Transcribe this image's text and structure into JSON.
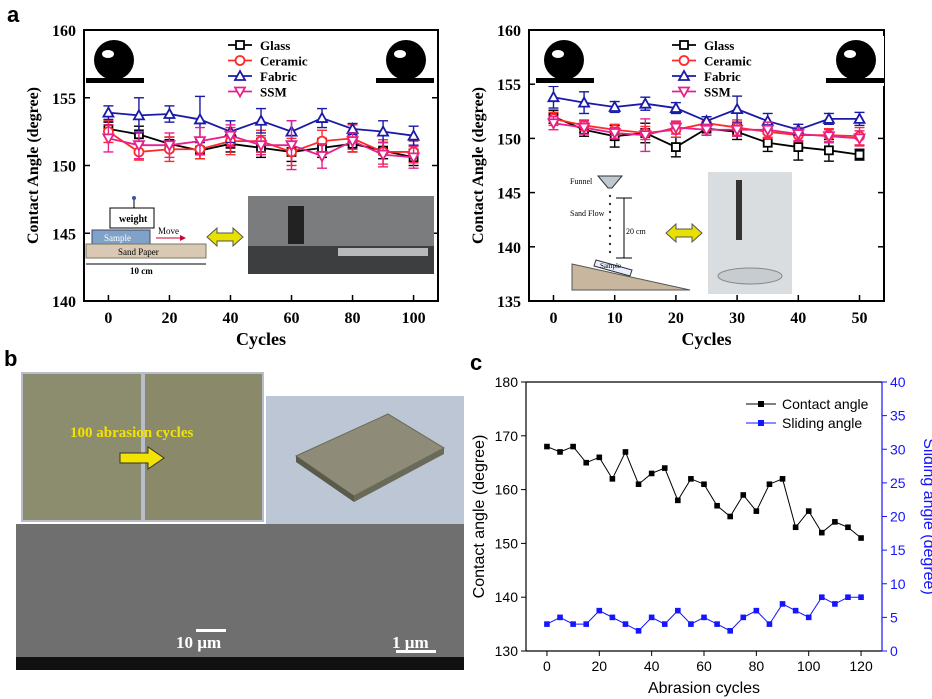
{
  "panel_labels": {
    "a": "a",
    "b": "b",
    "c": "c"
  },
  "panel_a_left": {
    "ylabel": "Contact Angle (degree)",
    "xlabel": "Cycles",
    "legend": [
      "Glass",
      "Ceramic",
      "Fabric",
      "SSM"
    ],
    "inset": {
      "weight": "weight",
      "sample": "Sample",
      "move": "Move",
      "sandpaper": "Sand Paper",
      "length": "10 cm"
    }
  },
  "panel_a_right": {
    "ylabel": "Contact Angle (degree)",
    "xlabel": "Cycles",
    "legend": [
      "Glass",
      "Ceramic",
      "Fabric",
      "SSM"
    ],
    "inset": {
      "funnel": "Funnel",
      "sandflow": "Sand Flow",
      "height": "20 cm",
      "sample": "Sample"
    }
  },
  "panel_b": {
    "abrasion_text": "100 abrasion cycles",
    "scale1": "10 µm",
    "scale2": "1 µm"
  },
  "colors": {
    "glass": "#000000",
    "ceramic": "#ff2a2a",
    "fabric": "#1a1aa8",
    "ssm": "#e8208c",
    "sliding": "#1515ff"
  },
  "chart_data": [
    {
      "type": "line",
      "panel": "a-left",
      "xlabel": "Cycles",
      "ylabel": "Contact Angle (degree)",
      "xlim": [
        -8,
        108
      ],
      "ylim": [
        140,
        160
      ],
      "xticks": [
        0,
        20,
        40,
        60,
        80,
        100
      ],
      "yticks": [
        140,
        145,
        150,
        155,
        160
      ],
      "x": [
        0,
        10,
        20,
        30,
        40,
        50,
        60,
        70,
        80,
        90,
        100
      ],
      "series": [
        {
          "name": "Glass",
          "marker": "square",
          "values": [
            152.7,
            152.3,
            151.6,
            151.1,
            151.6,
            151.3,
            151.0,
            151.3,
            151.6,
            151.1,
            150.6
          ],
          "err": [
            0.5,
            0.6,
            0.5,
            0.6,
            0.6,
            0.7,
            0.7,
            0.7,
            0.6,
            0.6,
            0.6
          ]
        },
        {
          "name": "Ceramic",
          "marker": "circle",
          "values": [
            152.5,
            151.0,
            151.2,
            151.2,
            151.8,
            151.8,
            151.0,
            151.8,
            152.0,
            151.0,
            151.0
          ],
          "err": [
            0.8,
            0.6,
            0.9,
            0.7,
            1.0,
            0.8,
            1.0,
            0.8,
            1.0,
            0.9,
            0.8
          ]
        },
        {
          "name": "Fabric",
          "marker": "triangle",
          "values": [
            153.9,
            153.7,
            153.8,
            153.4,
            152.5,
            153.3,
            152.5,
            153.5,
            152.7,
            152.5,
            152.2
          ],
          "err": [
            0.5,
            1.3,
            0.6,
            1.7,
            0.8,
            0.9,
            0.8,
            0.7,
            0.4,
            0.8,
            0.7
          ]
        },
        {
          "name": "SSM",
          "marker": "triangle-down",
          "values": [
            152.0,
            151.5,
            151.5,
            151.8,
            152.2,
            151.5,
            151.5,
            150.7,
            151.8,
            150.8,
            150.6
          ],
          "err": [
            1.0,
            1.0,
            0.9,
            1.0,
            0.8,
            0.7,
            1.8,
            0.9,
            0.6,
            0.9,
            0.8
          ]
        }
      ]
    },
    {
      "type": "line",
      "panel": "a-right",
      "xlabel": "Cycles",
      "ylabel": "Contact Angle (degree)",
      "xlim": [
        -4,
        54
      ],
      "ylim": [
        135,
        160
      ],
      "xticks": [
        0,
        10,
        20,
        30,
        40,
        50
      ],
      "yticks": [
        135,
        140,
        145,
        150,
        155,
        160
      ],
      "x": [
        0,
        5,
        10,
        15,
        20,
        25,
        30,
        35,
        40,
        45,
        50
      ],
      "series": [
        {
          "name": "Glass",
          "marker": "square",
          "values": [
            152.0,
            150.8,
            150.2,
            150.5,
            149.2,
            150.9,
            150.6,
            149.6,
            149.2,
            148.9,
            148.5
          ],
          "err": [
            0.6,
            0.6,
            1.0,
            0.9,
            0.9,
            0.6,
            0.7,
            0.8,
            1.2,
            1.0,
            0.5
          ]
        },
        {
          "name": "Ceramic",
          "marker": "circle",
          "values": [
            151.8,
            151.2,
            150.8,
            150.5,
            150.8,
            151.4,
            151.0,
            150.6,
            150.3,
            150.3,
            150.2
          ],
          "err": [
            0.6,
            0.5,
            0.5,
            0.6,
            0.7,
            0.6,
            0.7,
            0.6,
            0.6,
            0.6,
            0.8
          ]
        },
        {
          "name": "Fabric",
          "marker": "triangle",
          "values": [
            153.8,
            153.3,
            152.9,
            153.2,
            152.8,
            151.6,
            152.7,
            151.6,
            150.8,
            151.8,
            151.8
          ],
          "err": [
            1.0,
            1.0,
            0.5,
            0.6,
            0.5,
            0.4,
            1.2,
            0.7,
            0.5,
            0.5,
            0.6
          ]
        },
        {
          "name": "SSM",
          "marker": "triangle-down",
          "values": [
            151.4,
            151.0,
            150.5,
            150.3,
            151.0,
            150.8,
            150.8,
            150.8,
            150.4,
            150.2,
            150.0
          ],
          "err": [
            0.6,
            0.6,
            0.5,
            1.5,
            0.6,
            0.5,
            0.6,
            0.7,
            0.6,
            0.6,
            0.7
          ]
        }
      ]
    },
    {
      "type": "line",
      "panel": "c",
      "xlabel": "Abrasion cycles",
      "ylabel": "Contact angle (degree)",
      "y2label": "Sliding angle (degree)",
      "xlim": [
        -8,
        128
      ],
      "ylim": [
        130,
        180
      ],
      "y2lim": [
        0,
        40
      ],
      "xticks": [
        0,
        20,
        40,
        60,
        80,
        100,
        120
      ],
      "yticks": [
        130,
        140,
        150,
        160,
        170,
        180
      ],
      "y2ticks": [
        0,
        5,
        10,
        15,
        20,
        25,
        30,
        35,
        40
      ],
      "x": [
        0,
        5,
        10,
        15,
        20,
        25,
        30,
        35,
        40,
        45,
        50,
        55,
        60,
        65,
        70,
        75,
        80,
        85,
        90,
        95,
        100,
        105,
        110,
        115,
        120
      ],
      "legend_position": "top-right",
      "series": [
        {
          "name": "Contact angle",
          "axis": "left",
          "marker": "square",
          "values": [
            168,
            167,
            168,
            165,
            166,
            162,
            167,
            161,
            163,
            164,
            158,
            162,
            161,
            157,
            155,
            159,
            156,
            161,
            162,
            153,
            156,
            152,
            154,
            153,
            151
          ]
        },
        {
          "name": "Sliding angle",
          "axis": "right",
          "marker": "square",
          "values": [
            4,
            5,
            4,
            4,
            6,
            5,
            4,
            3,
            5,
            4,
            6,
            4,
            5,
            4,
            3,
            5,
            6,
            4,
            7,
            6,
            5,
            8,
            7,
            8,
            8
          ]
        }
      ]
    }
  ]
}
